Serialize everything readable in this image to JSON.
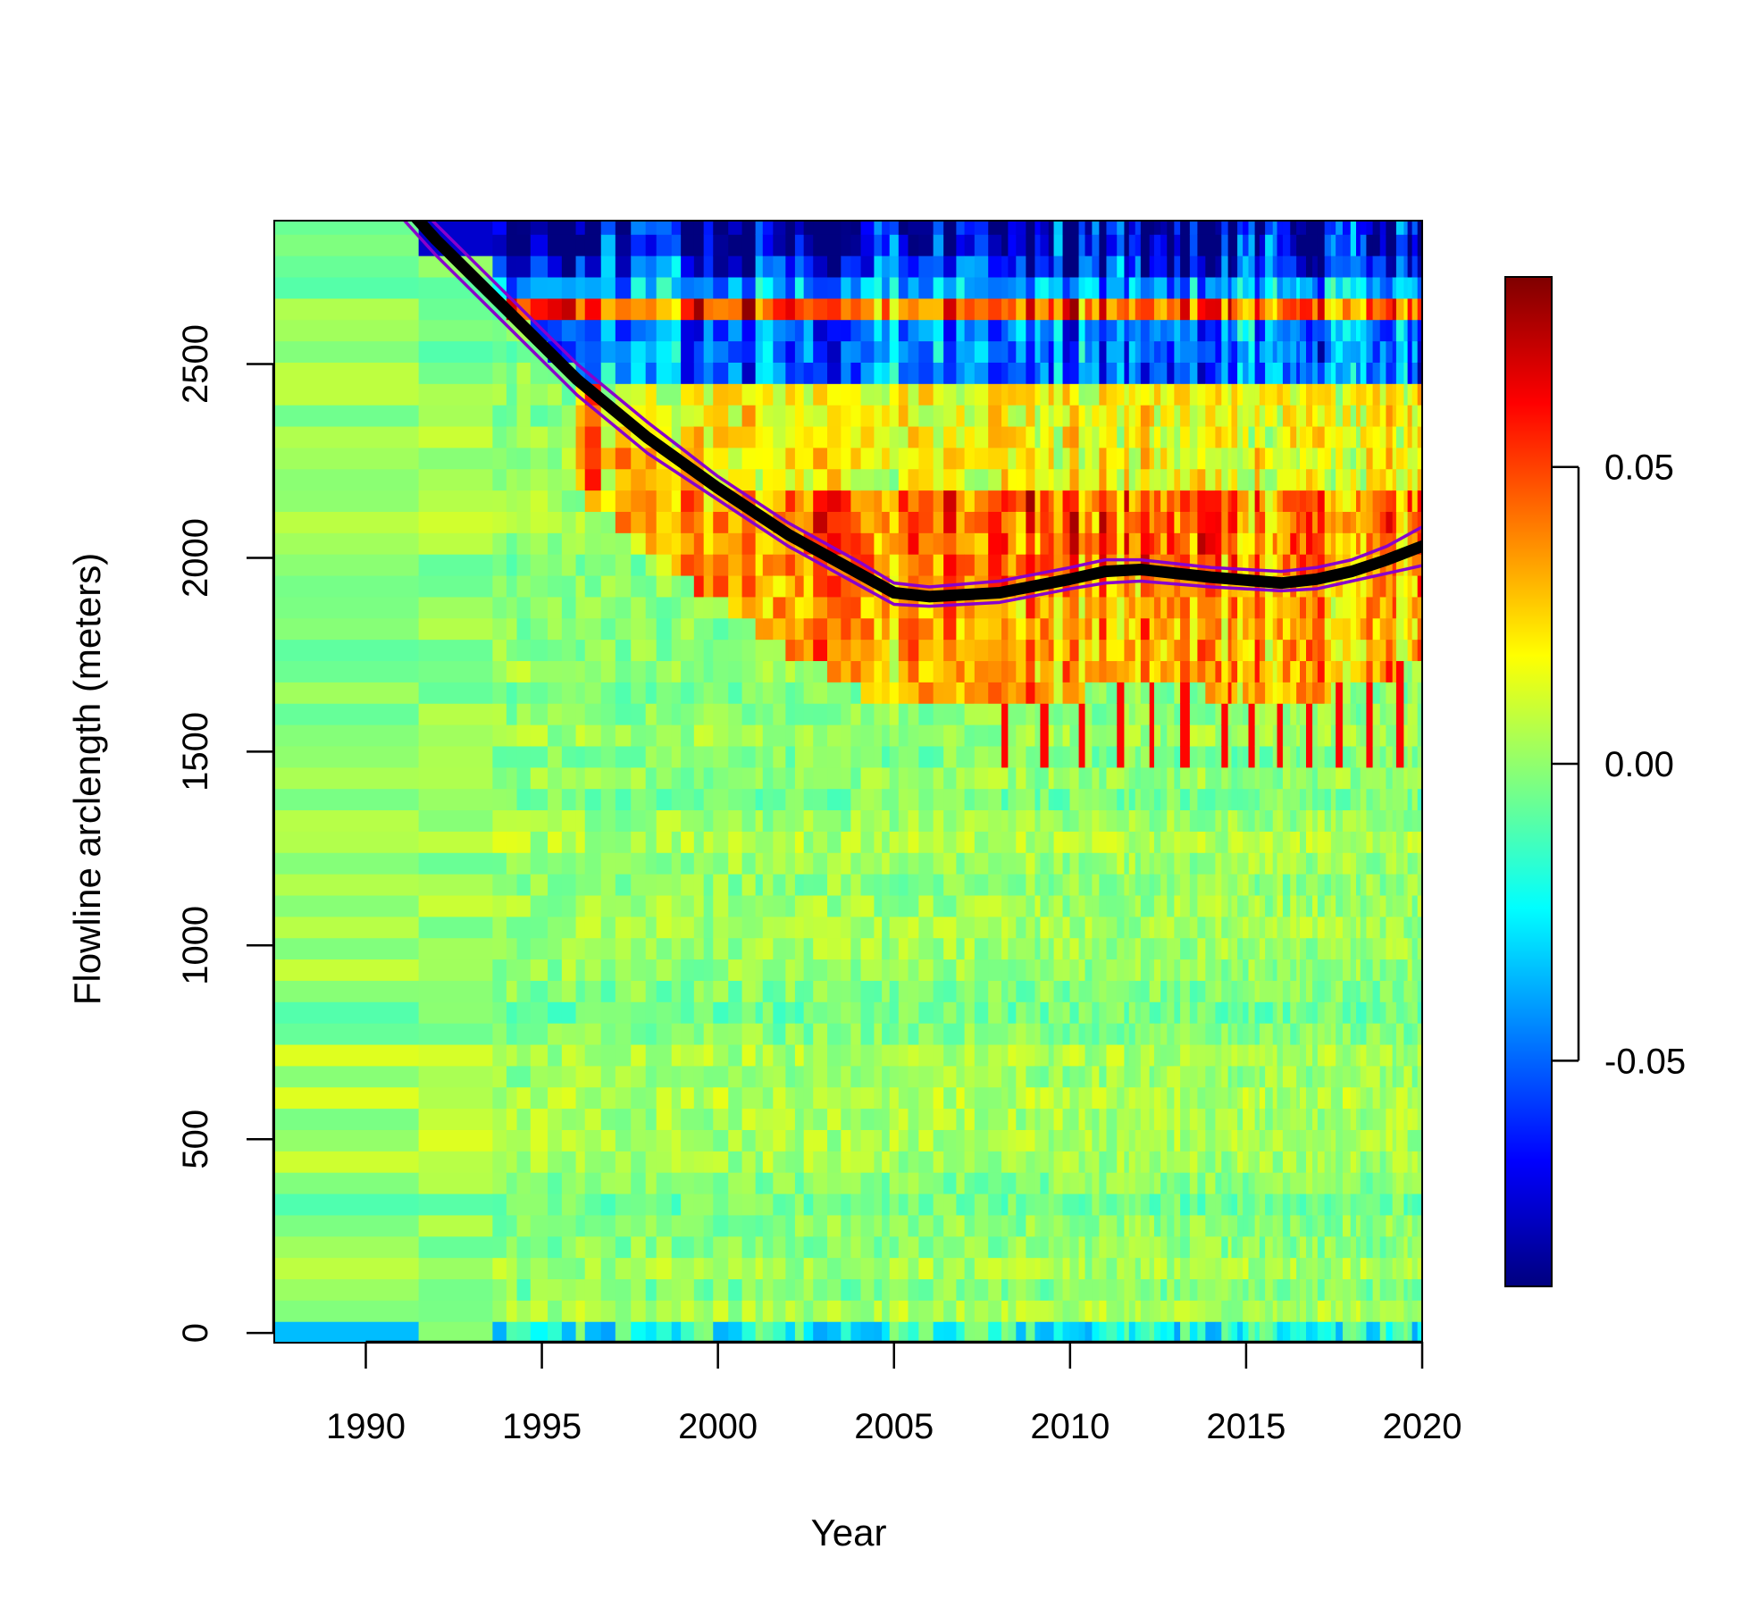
{
  "chart_data": {
    "type": "heatmap",
    "title": "",
    "xlabel": "Year",
    "ylabel": "Flowline arclength (meters)",
    "xlim": [
      1987.4,
      2020.0
    ],
    "ylim": [
      -25,
      2870
    ],
    "x_ticks": [
      1990,
      1995,
      2000,
      2005,
      2010,
      2015,
      2020
    ],
    "y_ticks": [
      0,
      500,
      1000,
      1500,
      2000,
      2500
    ],
    "colorbar": {
      "range": [
        -0.088,
        0.082
      ],
      "ticks": [
        -0.05,
        0.0,
        0.05
      ],
      "tick_labels": [
        "-0.05",
        "0.00",
        "0.05"
      ],
      "palette": [
        "#00007F",
        "#0000FF",
        "#007FFF",
        "#00FFFF",
        "#7FFF7F",
        "#FFFF00",
        "#FF7F00",
        "#FF0000",
        "#7F0000"
      ],
      "placement": "right"
    },
    "heatmap_features": [
      {
        "description_band": "lower region near-zero values",
        "y_range": [
          0,
          1450
        ],
        "value_approx": 0.0
      },
      {
        "description_band": "positive band along front",
        "y_range": [
          1800,
          2100
        ],
        "value_approx": 0.05
      },
      {
        "description_band": "negative band",
        "y_range": [
          2450,
          2650
        ],
        "value_approx": -0.06
      },
      {
        "description_band": "positive band",
        "y_range": [
          2620,
          2760
        ],
        "value_approx": 0.05
      },
      {
        "description_band": "strong negative top band",
        "y_range": [
          2780,
          2870
        ],
        "value_approx": -0.08
      }
    ],
    "series": [
      {
        "type": "line",
        "color": "#000000",
        "x": [
          1987.4,
          1990,
          1992,
          1994,
          1996,
          1998,
          2000,
          2002,
          2004,
          2005,
          2006,
          2008,
          2010,
          2011,
          2012,
          2014,
          2016,
          2017,
          2018,
          2019,
          2020
        ],
        "y": [
          3050,
          3020,
          2820,
          2640,
          2460,
          2310,
          2180,
          2060,
          1960,
          1910,
          1900,
          1910,
          1945,
          1965,
          1970,
          1950,
          1935,
          1945,
          1965,
          1995,
          2030
        ]
      },
      {
        "type": "line",
        "color": "#8800CC",
        "x": [
          1987.4,
          1990,
          1992,
          1994,
          1996,
          1998,
          2000,
          2002,
          2004,
          2005,
          2006,
          2008,
          2010,
          2011,
          2012,
          2014,
          2016,
          2017,
          2018,
          2019,
          2020
        ],
        "y": [
          3080,
          3050,
          2860,
          2680,
          2500,
          2350,
          2210,
          2090,
          1990,
          1935,
          1925,
          1940,
          1975,
          1995,
          1995,
          1975,
          1965,
          1975,
          1995,
          2030,
          2080
        ]
      },
      {
        "type": "line",
        "color": "#8800CC",
        "x": [
          1987.4,
          1990,
          1992,
          1994,
          1996,
          1998,
          2000,
          2002,
          2004,
          2005,
          2006,
          2008,
          2010,
          2011,
          2012,
          2014,
          2016,
          2017,
          2018,
          2019,
          2020
        ],
        "y": [
          3010,
          2980,
          2780,
          2600,
          2420,
          2270,
          2150,
          2030,
          1930,
          1880,
          1875,
          1885,
          1920,
          1935,
          1940,
          1925,
          1915,
          1920,
          1940,
          1960,
          1980
        ]
      }
    ]
  }
}
